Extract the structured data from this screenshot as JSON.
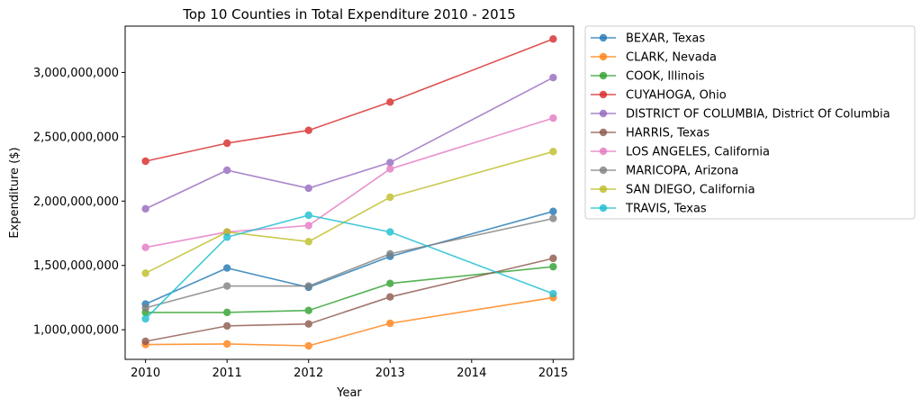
{
  "chart_data": {
    "type": "line",
    "title": "Top 10 Counties in Total Expenditure 2010 - 2015",
    "xlabel": "Year",
    "ylabel": "Expenditure ($)",
    "x": [
      2010,
      2011,
      2012,
      2013,
      2015
    ],
    "x_ticks": [
      2010,
      2011,
      2012,
      2013,
      2014,
      2015
    ],
    "x_tick_labels": [
      "2010",
      "2011",
      "2012",
      "2013",
      "2014",
      "2015"
    ],
    "xlim": [
      2009.75,
      2015.25
    ],
    "ylim": [
      770000000,
      3360000000
    ],
    "y_ticks": [
      1000000000,
      1500000000,
      2000000000,
      2500000000,
      3000000000
    ],
    "y_tick_labels": [
      "1,000,000,000",
      "1,500,000,000",
      "2,000,000,000",
      "2,500,000,000",
      "3,000,000,000"
    ],
    "grid": false,
    "legend_position": "outside-right",
    "series": [
      {
        "name": "BEXAR, Texas",
        "color": "#1f77b4",
        "values": [
          1200000000,
          1480000000,
          1330000000,
          1570000000,
          1920000000
        ]
      },
      {
        "name": "CLARK, Nevada",
        "color": "#ff7f0e",
        "values": [
          885000000,
          890000000,
          875000000,
          1050000000,
          1250000000
        ]
      },
      {
        "name": "COOK, Illinois",
        "color": "#2ca02c",
        "values": [
          1135000000,
          1135000000,
          1150000000,
          1360000000,
          1490000000
        ]
      },
      {
        "name": "CUYAHOGA, Ohio",
        "color": "#d62728",
        "values": [
          2310000000,
          2450000000,
          2550000000,
          2770000000,
          3260000000
        ]
      },
      {
        "name": "DISTRICT OF COLUMBIA, District Of Columbia",
        "color": "#9467bd",
        "values": [
          1940000000,
          2240000000,
          2100000000,
          2300000000,
          2960000000
        ]
      },
      {
        "name": "HARRIS, Texas",
        "color": "#8c564b",
        "values": [
          910000000,
          1030000000,
          1045000000,
          1255000000,
          1555000000
        ]
      },
      {
        "name": "LOS ANGELES, California",
        "color": "#e377c2",
        "values": [
          1640000000,
          1760000000,
          1810000000,
          2250000000,
          2645000000
        ]
      },
      {
        "name": "MARICOPA, Arizona",
        "color": "#7f7f7f",
        "values": [
          1170000000,
          1340000000,
          1340000000,
          1590000000,
          1865000000
        ]
      },
      {
        "name": "SAN DIEGO, California",
        "color": "#bcbd22",
        "values": [
          1440000000,
          1760000000,
          1685000000,
          2030000000,
          2385000000
        ]
      },
      {
        "name": "TRAVIS, Texas",
        "color": "#17becf",
        "values": [
          1085000000,
          1720000000,
          1890000000,
          1760000000,
          1280000000
        ]
      }
    ]
  }
}
